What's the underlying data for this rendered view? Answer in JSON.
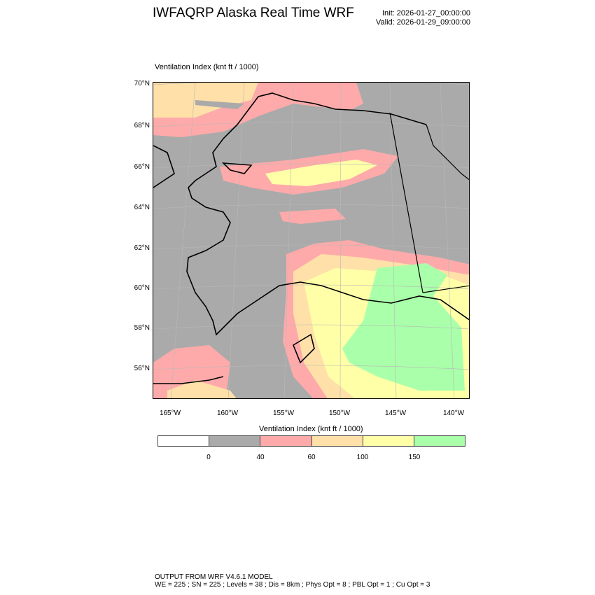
{
  "header": {
    "title": "IWFAQRP Alaska Real Time WRF",
    "init": "Init: 2026-01-27_00:00:00",
    "valid": "Valid: 2026-01-29_09:00:00"
  },
  "map": {
    "field_title": "Ventilation Index   (knt ft / 1000)",
    "lat_labels": [
      "70°N",
      "68°N",
      "66°N",
      "64°N",
      "62°N",
      "60°N",
      "58°N",
      "56°N"
    ],
    "lon_labels": [
      "165°W",
      "160°W",
      "155°W",
      "150°W",
      "145°W",
      "140°W"
    ],
    "background_color": "#aaaaaa"
  },
  "colorbar": {
    "title": "Ventilation Index  (knt ft / 1000)",
    "colors": [
      "#ffffff",
      "#aaaaaa",
      "#ffaaaa",
      "#ffe0a8",
      "#ffffa8",
      "#aaffaa"
    ],
    "labels": [
      "0",
      "40",
      "60",
      "100",
      "150"
    ]
  },
  "footer": {
    "line1": "OUTPUT FROM WRF V4.6.1 MODEL",
    "line2": "WE = 225 ; SN = 225 ; Levels = 38 ; Dis = 8km ; Phys Opt = 8 ; PBL Opt = 1 ; Cu Opt = 3"
  }
}
